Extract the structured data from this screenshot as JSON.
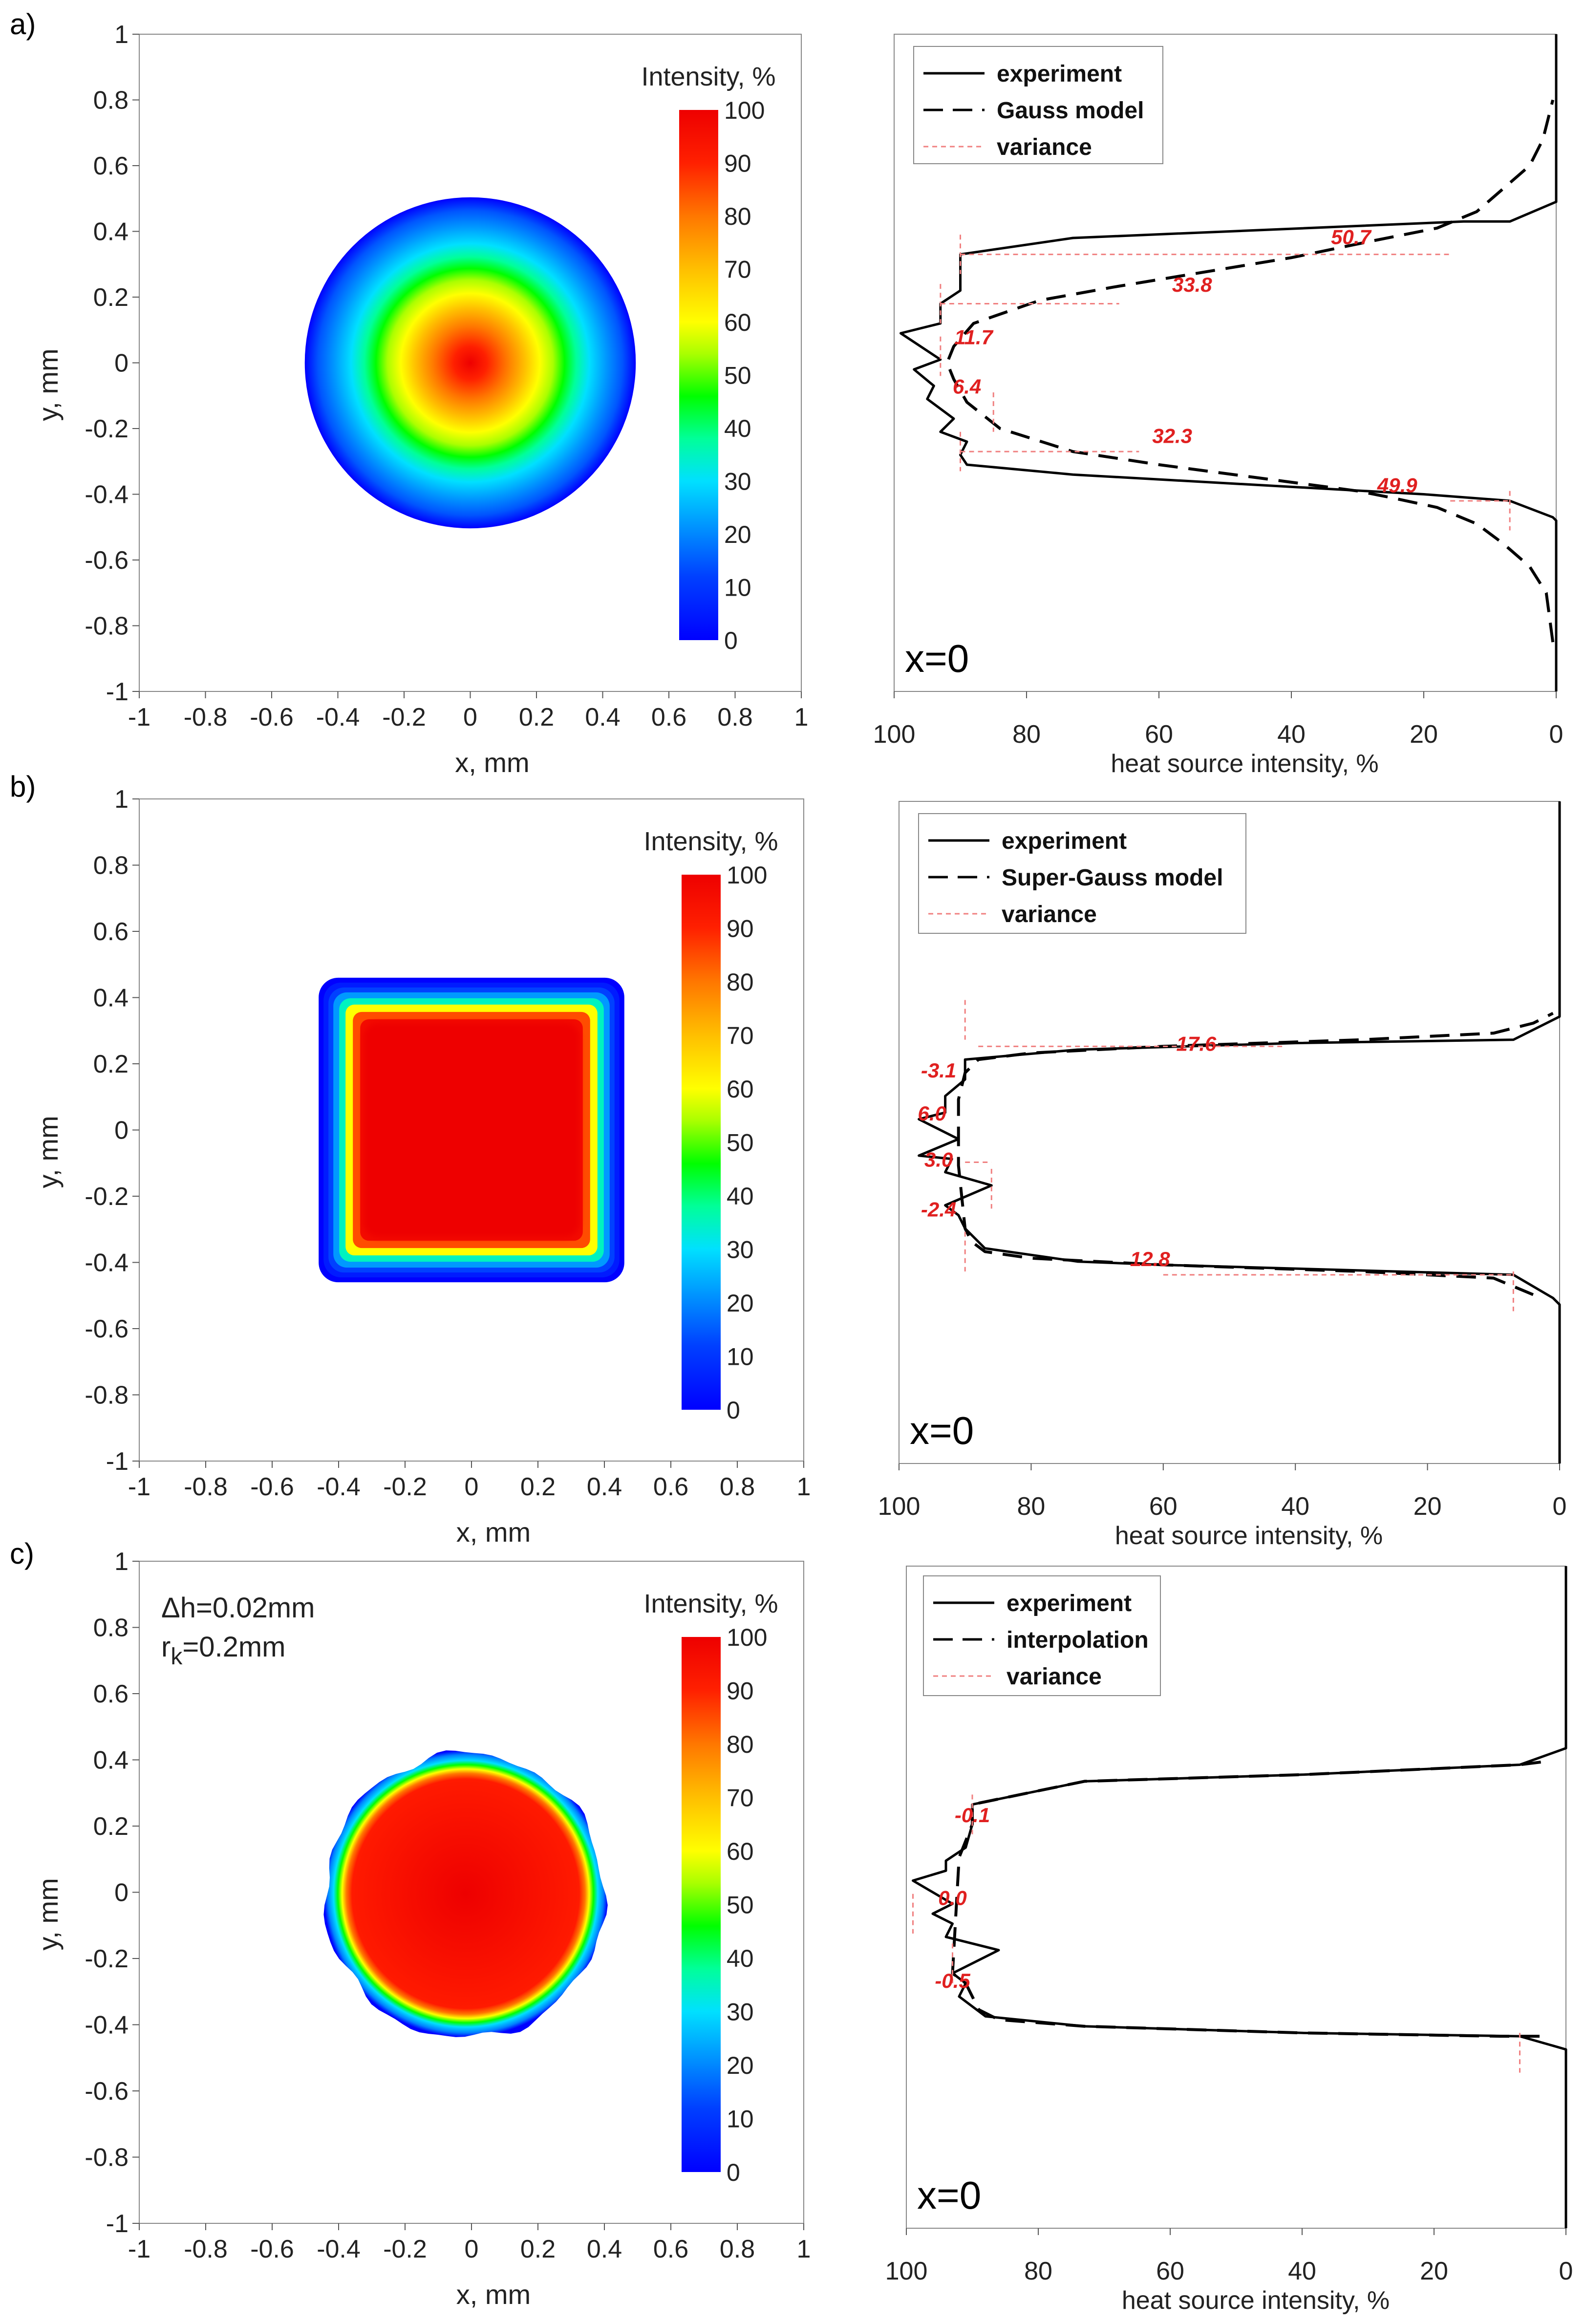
{
  "chart_data": [
    {
      "panel": "a)",
      "type": "heatmap",
      "shape": "circle",
      "radius_mm": 0.5,
      "xlabel": "x, mm",
      "ylabel": "y, mm",
      "xlim": [
        -1,
        1
      ],
      "ylim": [
        -1,
        1
      ],
      "xticks": [
        "-1",
        "-0.8",
        "-0.6",
        "-0.4",
        "-0.2",
        "0",
        "0.2",
        "0.4",
        "0.6",
        "0.8",
        "1"
      ],
      "yticks": [
        "1",
        "0.8",
        "0.6",
        "0.4",
        "0.2",
        "0",
        "-0.2",
        "-0.4",
        "-0.6",
        "-0.8",
        "-1"
      ],
      "colorbar": {
        "title": "Intensity, %",
        "ticks": [
          "100",
          "90",
          "80",
          "70",
          "60",
          "50",
          "40",
          "30",
          "20",
          "10",
          "0"
        ]
      },
      "annotations": []
    },
    {
      "panel": "a)",
      "type": "line",
      "xlabel": "heat source intensity, %",
      "xlim": [
        100,
        0
      ],
      "ylim": [
        -1,
        1
      ],
      "xticks": [
        "100",
        "80",
        "60",
        "40",
        "20",
        "0"
      ],
      "label": "x=0",
      "legend": [
        "experiment",
        "Gauss model",
        "variance"
      ],
      "series": [
        {
          "name": "experiment",
          "style": "solid",
          "points": [
            [
              0,
              -1
            ],
            [
              0,
              -0.48
            ],
            [
              0.5,
              -0.47
            ],
            [
              7,
              -0.42
            ],
            [
              20,
              -0.4
            ],
            [
              73,
              -0.34
            ],
            [
              89,
              -0.31
            ],
            [
              90,
              -0.28
            ],
            [
              89,
              -0.24
            ],
            [
              93,
              -0.21
            ],
            [
              91,
              -0.17
            ],
            [
              95,
              -0.11
            ],
            [
              94,
              -0.07
            ],
            [
              97,
              -0.02
            ],
            [
              93,
              0.01
            ],
            [
              99,
              0.09
            ],
            [
              93,
              0.12
            ],
            [
              93,
              0.18
            ],
            [
              90,
              0.22
            ],
            [
              90,
              0.27
            ],
            [
              90,
              0.33
            ],
            [
              73,
              0.38
            ],
            [
              14,
              0.43
            ],
            [
              7,
              0.43
            ],
            [
              0,
              0.49
            ],
            [
              0,
              1
            ]
          ]
        },
        {
          "name": "Gauss model",
          "style": "dashed",
          "points": [
            [
              0.5,
              -0.85
            ],
            [
              1.5,
              -0.7
            ],
            [
              4,
              -0.62
            ],
            [
              8,
              -0.55
            ],
            [
              12,
              -0.49
            ],
            [
              18,
              -0.44
            ],
            [
              25,
              -0.41
            ],
            [
              30,
              -0.39
            ],
            [
              45,
              -0.35
            ],
            [
              60,
              -0.31
            ],
            [
              73,
              -0.27
            ],
            [
              84,
              -0.2
            ],
            [
              89,
              -0.12
            ],
            [
              91,
              -0.05
            ],
            [
              92,
              0
            ],
            [
              91,
              0.05
            ],
            [
              88,
              0.12
            ],
            [
              78,
              0.19
            ],
            [
              67,
              0.23
            ],
            [
              55,
              0.27
            ],
            [
              40,
              0.32
            ],
            [
              28,
              0.37
            ],
            [
              18,
              0.41
            ],
            [
              12,
              0.46
            ],
            [
              8,
              0.53
            ],
            [
              4,
              0.6
            ],
            [
              2,
              0.68
            ],
            [
              0.5,
              0.8
            ]
          ]
        },
        {
          "name": "variance",
          "style": "dotted",
          "values": [
            "50.7",
            "33.8",
            "11.7",
            "6.4",
            "32.3",
            "49.9"
          ]
        }
      ]
    },
    {
      "panel": "b)",
      "type": "heatmap",
      "shape": "rounded-square",
      "half_width_mm": 0.45,
      "xlabel": "x, mm",
      "ylabel": "y, mm",
      "xlim": [
        -1,
        1
      ],
      "ylim": [
        -1,
        1
      ],
      "xticks": [
        "-1",
        "-0.8",
        "-0.6",
        "-0.4",
        "-0.2",
        "0",
        "0.2",
        "0.4",
        "0.6",
        "0.8",
        "1"
      ],
      "yticks": [
        "1",
        "0.8",
        "0.6",
        "0.4",
        "0.2",
        "0",
        "-0.2",
        "-0.4",
        "-0.6",
        "-0.8",
        "-1"
      ],
      "colorbar": {
        "title": "Intensity, %",
        "ticks": [
          "100",
          "90",
          "80",
          "70",
          "60",
          "50",
          "40",
          "30",
          "20",
          "10",
          "0"
        ]
      },
      "annotations": []
    },
    {
      "panel": "b)",
      "type": "line",
      "xlabel": "heat source intensity, %",
      "xlim": [
        100,
        0
      ],
      "ylim": [
        -1,
        1
      ],
      "xticks": [
        "100",
        "80",
        "60",
        "40",
        "20",
        "0"
      ],
      "label": "x=0",
      "legend": [
        "experiment",
        "Super-Gauss model",
        "variance"
      ],
      "series": [
        {
          "name": "experiment",
          "style": "solid",
          "points": [
            [
              0,
              -1
            ],
            [
              0,
              -0.52
            ],
            [
              1,
              -0.5
            ],
            [
              7,
              -0.43
            ],
            [
              60,
              -0.4
            ],
            [
              73,
              -0.39
            ],
            [
              87,
              -0.35
            ],
            [
              90,
              -0.29
            ],
            [
              91,
              -0.25
            ],
            [
              93,
              -0.22
            ],
            [
              86,
              -0.16
            ],
            [
              93,
              -0.12
            ],
            [
              92,
              -0.08
            ],
            [
              97,
              -0.07
            ],
            [
              91,
              -0.02
            ],
            [
              97,
              0.04
            ],
            [
              93,
              0.06
            ],
            [
              93,
              0.11
            ],
            [
              90,
              0.16
            ],
            [
              90,
              0.22
            ],
            [
              73,
              0.25
            ],
            [
              40,
              0.27
            ],
            [
              7,
              0.28
            ],
            [
              0,
              0.35
            ],
            [
              0,
              1
            ]
          ]
        },
        {
          "name": "Super-Gauss model",
          "style": "dashed",
          "points": [
            [
              4,
              -0.49
            ],
            [
              10,
              -0.44
            ],
            [
              30,
              -0.42
            ],
            [
              60,
              -0.4
            ],
            [
              80,
              -0.38
            ],
            [
              87,
              -0.36
            ],
            [
              89,
              -0.33
            ],
            [
              90,
              -0.29
            ],
            [
              91,
              -0.1
            ],
            [
              91,
              0.1
            ],
            [
              90,
              0.18
            ],
            [
              88,
              0.22
            ],
            [
              80,
              0.24
            ],
            [
              60,
              0.26
            ],
            [
              30,
              0.28
            ],
            [
              10,
              0.3
            ],
            [
              4,
              0.33
            ],
            [
              1,
              0.36
            ]
          ]
        },
        {
          "name": "variance",
          "style": "dotted",
          "values": [
            "17.6",
            "-3.1",
            "6.0",
            "3.0",
            "-2.4",
            "12.8"
          ]
        }
      ]
    },
    {
      "panel": "c)",
      "type": "heatmap",
      "shape": "irregular-circle",
      "radius_mm": 0.42,
      "xlabel": "x, mm",
      "ylabel": "y, mm",
      "xlim": [
        -1,
        1
      ],
      "ylim": [
        -1,
        1
      ],
      "xticks": [
        "-1",
        "-0.8",
        "-0.6",
        "-0.4",
        "-0.2",
        "0",
        "0.2",
        "0.4",
        "0.6",
        "0.8",
        "1"
      ],
      "yticks": [
        "1",
        "0.8",
        "0.6",
        "0.4",
        "0.2",
        "0",
        "-0.2",
        "-0.4",
        "-0.6",
        "-0.8",
        "-1"
      ],
      "colorbar": {
        "title": "Intensity, %",
        "ticks": [
          "100",
          "90",
          "80",
          "70",
          "60",
          "50",
          "40",
          "30",
          "20",
          "10",
          "0"
        ]
      },
      "annotations": [
        "Δh=0.02mm",
        "r",
        "k",
        "=0.2mm"
      ]
    },
    {
      "panel": "c)",
      "type": "line",
      "xlabel": "heat source intensity, %",
      "xlim": [
        100,
        0
      ],
      "ylim": [
        -1,
        1
      ],
      "xticks": [
        "100",
        "80",
        "60",
        "40",
        "20",
        "0"
      ],
      "label": "x=0",
      "legend": [
        "experiment",
        "interpolation",
        "variance"
      ],
      "series": [
        {
          "name": "experiment",
          "style": "solid",
          "points": [
            [
              0,
              -1
            ],
            [
              0,
              -0.46
            ],
            [
              7,
              -0.42
            ],
            [
              40,
              -0.41
            ],
            [
              73,
              -0.39
            ],
            [
              88,
              -0.36
            ],
            [
              90,
              -0.33
            ],
            [
              92,
              -0.3
            ],
            [
              91,
              -0.26
            ],
            [
              93,
              -0.23
            ],
            [
              86,
              -0.16
            ],
            [
              94,
              -0.12
            ],
            [
              93,
              -0.08
            ],
            [
              96,
              -0.05
            ],
            [
              93,
              -0.02
            ],
            [
              99,
              0.05
            ],
            [
              94,
              0.08
            ],
            [
              94,
              0.11
            ],
            [
              91,
              0.15
            ],
            [
              90,
              0.22
            ],
            [
              90,
              0.28
            ],
            [
              73,
              0.35
            ],
            [
              40,
              0.37
            ],
            [
              7,
              0.4
            ],
            [
              0,
              0.45
            ],
            [
              0,
              1
            ]
          ]
        },
        {
          "name": "interpolation",
          "style": "dashed",
          "points": [
            [
              4,
              -0.42
            ],
            [
              10,
              -0.42
            ],
            [
              40,
              -0.41
            ],
            [
              73,
              -0.39
            ],
            [
              86,
              -0.37
            ],
            [
              89,
              -0.34
            ],
            [
              90,
              -0.3
            ],
            [
              91,
              -0.26
            ],
            [
              93,
              -0.23
            ],
            [
              92,
              0.12
            ],
            [
              90,
              0.22
            ],
            [
              90,
              0.28
            ],
            [
              73,
              0.35
            ],
            [
              40,
              0.37
            ],
            [
              7,
              0.4
            ],
            [
              3,
              0.41
            ]
          ]
        },
        {
          "name": "variance",
          "style": "dotted",
          "values": [
            "-0.1",
            "0.0",
            "-0.5"
          ]
        }
      ]
    }
  ]
}
